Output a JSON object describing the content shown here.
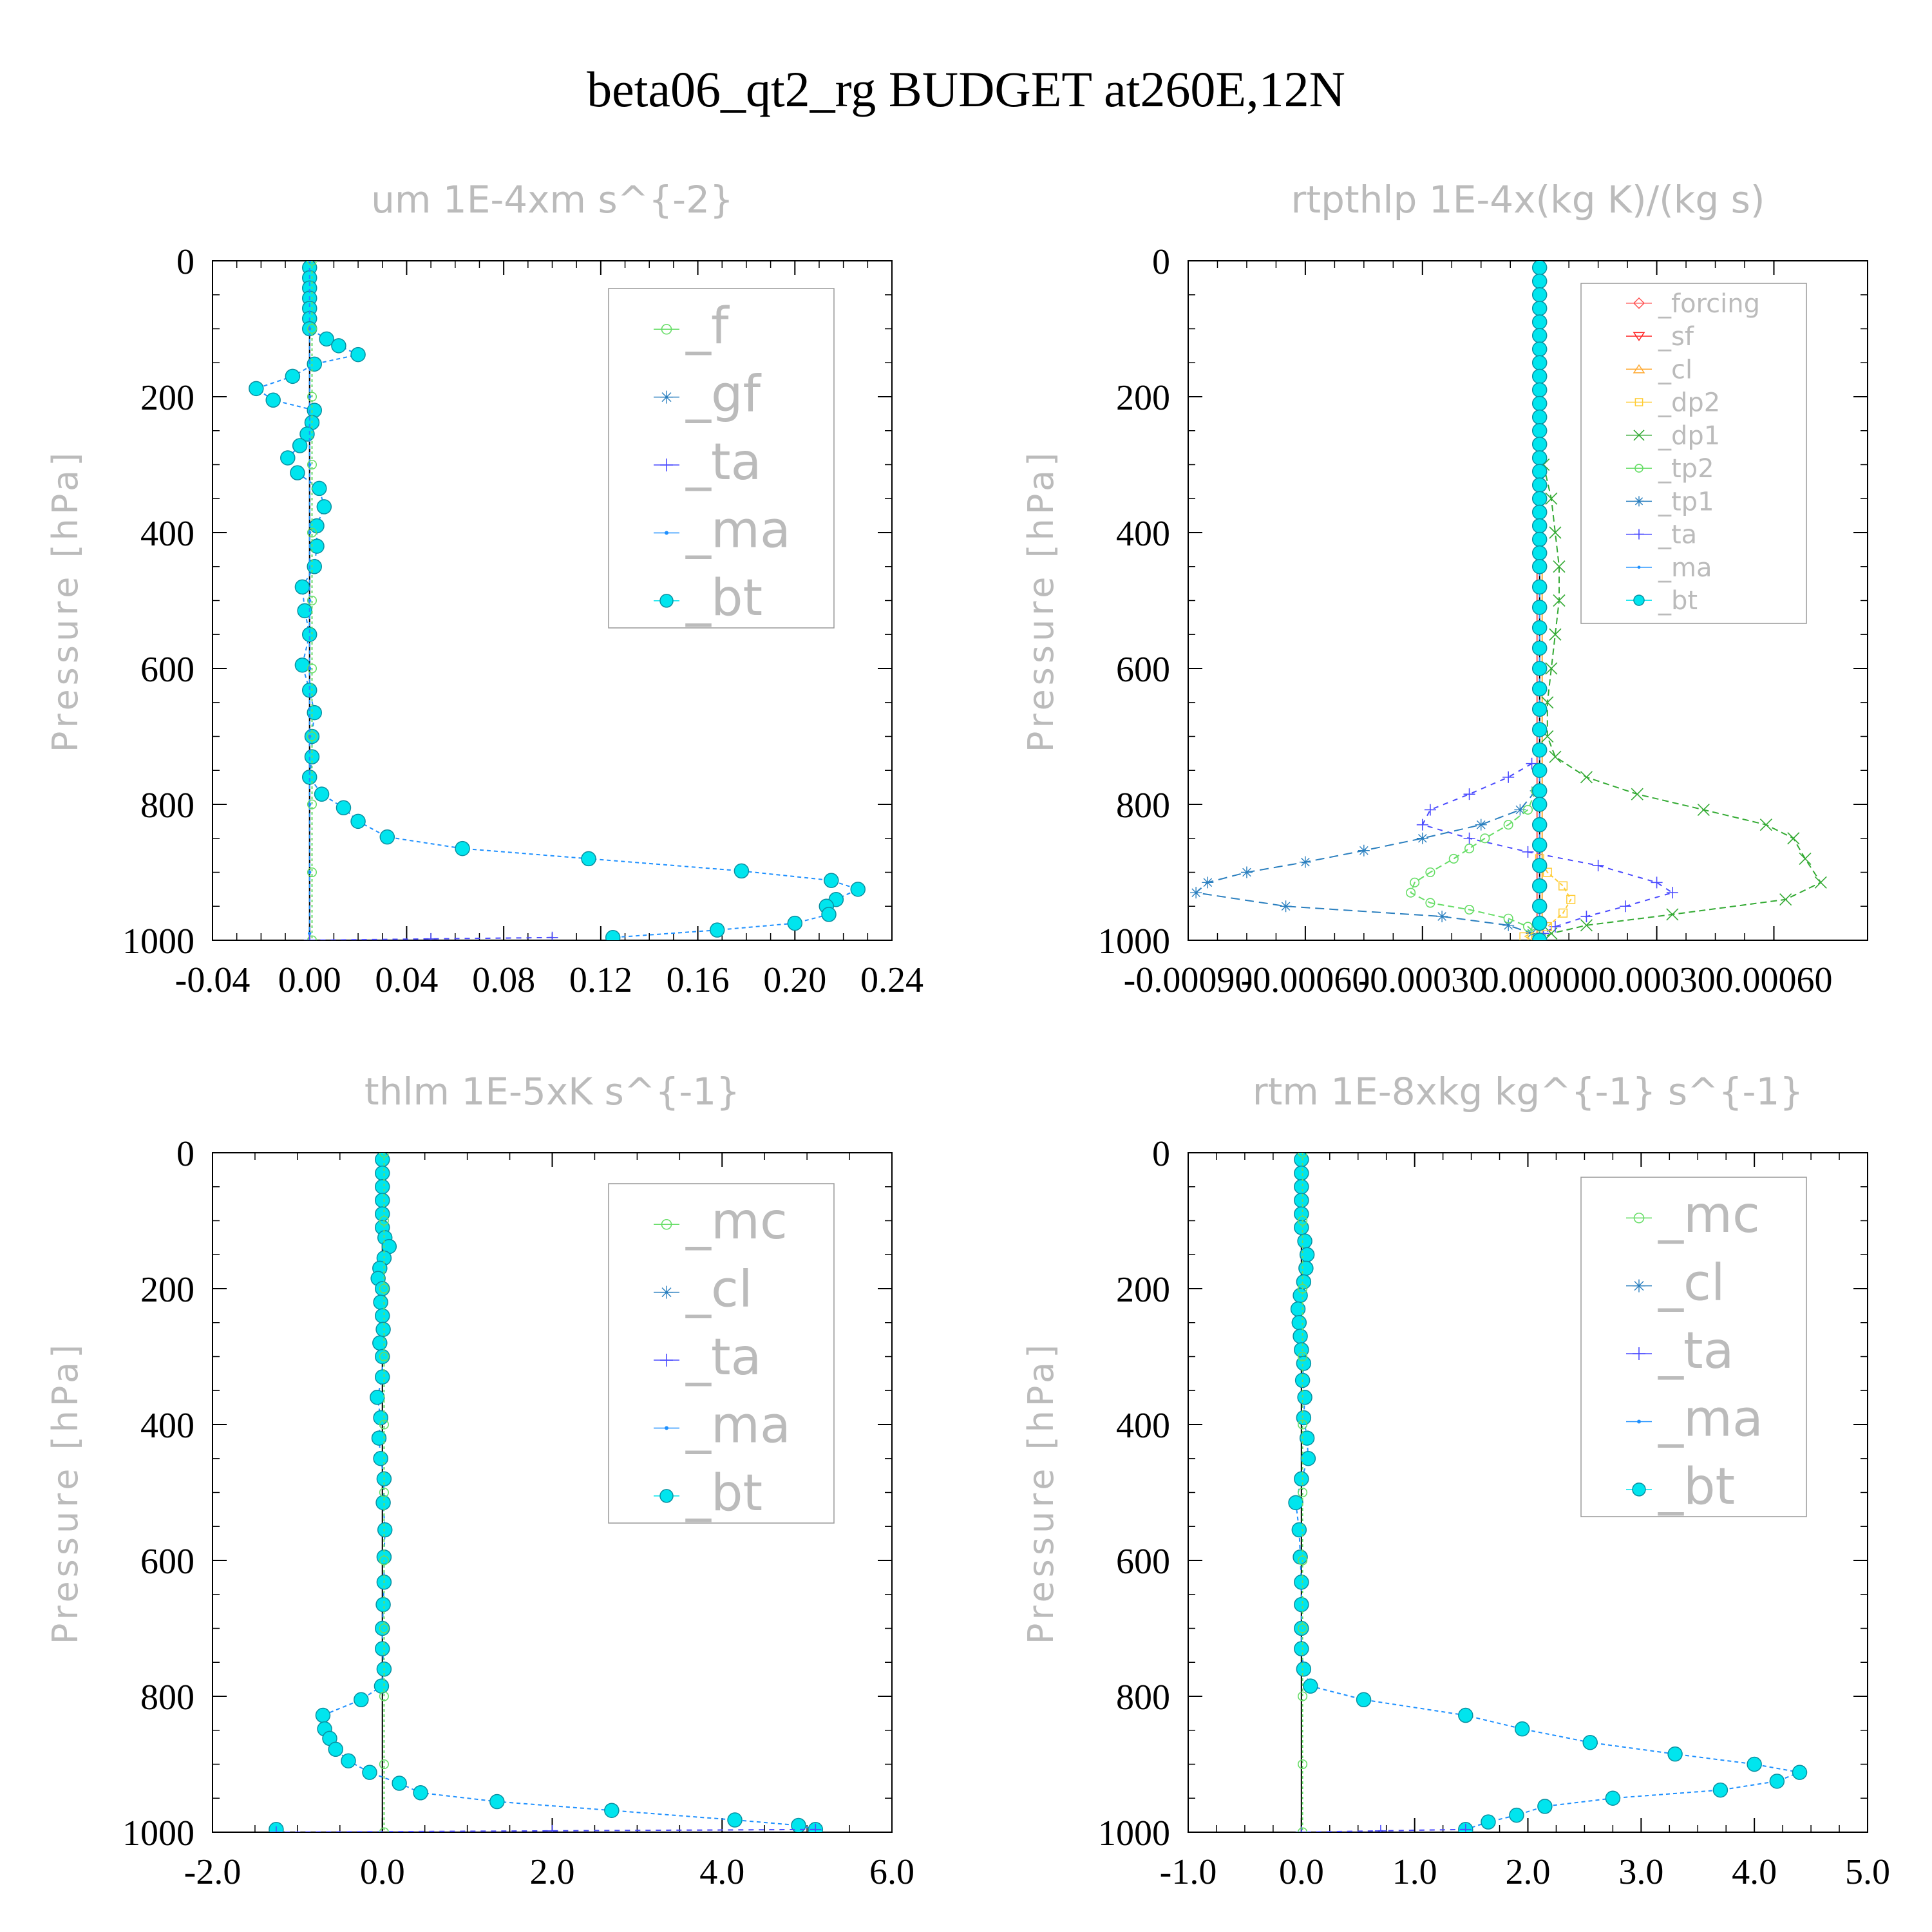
{
  "title": "beta06_qt2_rg  BUDGET at260E,12N",
  "colors": {
    "bt": "#00e5ee",
    "bt_edge": "#0a8fa0",
    "ma": "#1e90ff",
    "ta": "#4b4bff",
    "gf": "#2a7fbf",
    "f": "#66dd66",
    "mc": "#66dd66",
    "cl": "#2a7fbf",
    "forcing": "#ff5555",
    "sf": "#ff2222",
    "cl_orange": "#ffaa33",
    "dp2": "#ffcc33",
    "dp1": "#33aa33",
    "tp2": "#66dd66",
    "tp1": "#2a7fbf",
    "grey_text": "#bbbbbb"
  },
  "chart_data": [
    {
      "id": "um",
      "type": "line",
      "title": "um  1E-4xm s^{-2}",
      "ylabel": "Pressure [hPa]",
      "xlim": [
        -0.04,
        0.24
      ],
      "ylim": [
        1000,
        0
      ],
      "xticks": [
        "-0.04",
        "0.00",
        "0.04",
        "0.08",
        "0.12",
        "0.16",
        "0.20",
        "0.24"
      ],
      "yticks": [
        "0",
        "200",
        "400",
        "600",
        "800",
        "1000"
      ],
      "legend": [
        "_f",
        "_gf",
        "_ta",
        "_ma",
        "_bt"
      ],
      "series": [
        {
          "name": "_bt",
          "style": "bt",
          "y": [
            10,
            25,
            40,
            55,
            70,
            85,
            100,
            115,
            125,
            138,
            152,
            170,
            188,
            205,
            220,
            238,
            255,
            272,
            290,
            312,
            335,
            362,
            390,
            420,
            450,
            480,
            515,
            550,
            595,
            632,
            665,
            700,
            730,
            760,
            785,
            805,
            825,
            848,
            865,
            880,
            898,
            912,
            925,
            940,
            950,
            962,
            975,
            985,
            996
          ],
          "x": [
            0,
            0,
            0,
            0,
            0,
            0,
            0,
            0.007,
            0.012,
            0.02,
            0.002,
            -0.007,
            -0.022,
            -0.015,
            0.002,
            0.001,
            -0.001,
            -0.004,
            -0.009,
            -0.005,
            0.004,
            0.006,
            0.003,
            0.003,
            0.002,
            -0.003,
            -0.002,
            0,
            -0.003,
            0,
            0.002,
            0.001,
            0.001,
            0,
            0.005,
            0.014,
            0.02,
            0.032,
            0.063,
            0.115,
            0.178,
            0.215,
            0.226,
            0.217,
            0.213,
            0.214,
            0.2,
            0.168,
            0.125
          ]
        },
        {
          "name": "_ma",
          "style": "ma",
          "y": [
            0,
            100,
            200,
            300,
            400,
            500,
            600,
            700,
            800,
            900,
            990
          ],
          "x": [
            0,
            0,
            0,
            0,
            0,
            0,
            0,
            0,
            0,
            0,
            0
          ]
        },
        {
          "name": "_f",
          "style": "f",
          "y": [
            0,
            100,
            200,
            300,
            400,
            500,
            600,
            700,
            800,
            900,
            1000
          ],
          "x": [
            0.001,
            0.001,
            0.001,
            0.001,
            0.001,
            0.001,
            0.001,
            0.001,
            0.001,
            0.001,
            0.001
          ]
        },
        {
          "name": "_ta",
          "style": "ta",
          "y": [
            996,
            998,
            1000
          ],
          "x": [
            0.1,
            0.05,
            0
          ]
        }
      ]
    },
    {
      "id": "rtpthlp",
      "type": "line",
      "title": "rtpthlp  1E-4x(kg K)/(kg s)",
      "ylabel": "Pressure [hPa]",
      "xlim": [
        -0.0009,
        0.00084
      ],
      "ylim": [
        1000,
        0
      ],
      "xticks": [
        "-0.00090",
        "-0.00060",
        "-0.00030",
        "0.00000",
        "0.00030",
        "0.00060"
      ],
      "yticks": [
        "0",
        "200",
        "400",
        "600",
        "800",
        "1000"
      ],
      "legend": [
        "_forcing",
        "_sf",
        "_cl",
        "_dp2",
        "_dp1",
        "_tp2",
        "_tp1",
        "_ta",
        "_ma",
        "_bt"
      ],
      "series": [
        {
          "name": "_dp1",
          "style": "dp1",
          "y": [
            300,
            350,
            400,
            450,
            500,
            550,
            600,
            650,
            700,
            730,
            760,
            785,
            808,
            830,
            850,
            880,
            915,
            940,
            962,
            978,
            990,
            1000
          ],
          "x": [
            1e-05,
            3e-05,
            4e-05,
            5e-05,
            5e-05,
            4e-05,
            3e-05,
            2e-05,
            2e-05,
            4e-05,
            0.00012,
            0.00025,
            0.00042,
            0.00058,
            0.00065,
            0.00068,
            0.00072,
            0.00063,
            0.00034,
            0.00012,
            3e-05,
            0
          ]
        },
        {
          "name": "_ta",
          "style": "ta",
          "y": [
            740,
            760,
            785,
            808,
            830,
            850,
            870,
            890,
            915,
            930,
            950,
            965,
            980,
            990,
            1000
          ],
          "x": [
            -2e-05,
            -8e-05,
            -0.00018,
            -0.00028,
            -0.0003,
            -0.00018,
            -3e-05,
            0.00015,
            0.0003,
            0.00034,
            0.00022,
            0.00012,
            4e-05,
            1e-05,
            0
          ]
        },
        {
          "name": "_tp1",
          "style": "tp1",
          "y": [
            780,
            808,
            830,
            850,
            868,
            885,
            900,
            915,
            930,
            950,
            965,
            978,
            990,
            1000
          ],
          "x": [
            -1e-05,
            -5e-05,
            -0.00015,
            -0.0003,
            -0.00045,
            -0.0006,
            -0.00075,
            -0.00085,
            -0.00088,
            -0.00065,
            -0.00025,
            -8e-05,
            -2e-05,
            0
          ]
        },
        {
          "name": "_tp2",
          "style": "tp2",
          "y": [
            780,
            808,
            830,
            850,
            865,
            880,
            900,
            915,
            930,
            945,
            955,
            968,
            980,
            990,
            1000
          ],
          "x": [
            -1e-05,
            -3e-05,
            -8e-05,
            -0.00014,
            -0.00018,
            -0.00022,
            -0.00028,
            -0.00032,
            -0.00033,
            -0.00028,
            -0.00018,
            -8e-05,
            -3e-05,
            -1e-05,
            0
          ]
        },
        {
          "name": "_dp2",
          "style": "dp2",
          "y": [
            880,
            900,
            920,
            940,
            960,
            980,
            995,
            1000
          ],
          "x": [
            0,
            2e-05,
            6e-05,
            8e-05,
            6e-05,
            2e-05,
            -4e-05,
            -1e-05
          ]
        },
        {
          "name": "_bt",
          "style": "bt",
          "y": [
            10,
            30,
            50,
            70,
            90,
            110,
            130,
            150,
            170,
            190,
            210,
            230,
            250,
            270,
            290,
            310,
            330,
            350,
            370,
            390,
            410,
            430,
            450,
            480,
            510,
            540,
            570,
            600,
            630,
            660,
            690,
            720,
            750,
            780,
            800,
            830,
            860,
            890,
            920,
            950,
            975,
            1000
          ],
          "x": [
            0,
            0,
            0,
            0,
            0,
            0,
            0,
            0,
            0,
            0,
            0,
            0,
            0,
            0,
            0,
            0,
            0,
            0,
            0,
            0,
            0,
            0,
            0,
            0,
            0,
            0,
            0,
            0,
            0,
            0,
            0,
            0,
            0,
            0,
            0,
            0,
            0,
            0,
            0,
            0,
            0,
            0
          ]
        }
      ]
    },
    {
      "id": "thlm",
      "type": "line",
      "title": "thlm  1E-5xK s^{-1}",
      "ylabel": "Pressure [hPa]",
      "xlim": [
        -2.0,
        6.0
      ],
      "ylim": [
        1000,
        0
      ],
      "xticks": [
        "-2.0",
        "0.0",
        "2.0",
        "4.0",
        "6.0"
      ],
      "yticks": [
        "0",
        "200",
        "400",
        "600",
        "800",
        "1000"
      ],
      "legend": [
        "_mc",
        "_cl",
        "_ta",
        "_ma",
        "_bt"
      ],
      "series": [
        {
          "name": "_bt",
          "style": "bt",
          "y": [
            10,
            30,
            50,
            70,
            90,
            110,
            125,
            138,
            155,
            170,
            185,
            200,
            220,
            240,
            260,
            280,
            300,
            330,
            360,
            390,
            420,
            450,
            480,
            515,
            555,
            595,
            632,
            665,
            700,
            730,
            760,
            785,
            805,
            828,
            848,
            862,
            878,
            895,
            912,
            928,
            942,
            955,
            968,
            982,
            990,
            996
          ],
          "x": [
            0,
            0,
            0,
            0,
            0,
            0,
            0.03,
            0.08,
            0.02,
            -0.03,
            -0.05,
            0,
            -0.02,
            0,
            0.01,
            -0.03,
            0,
            0,
            -0.06,
            -0.02,
            -0.04,
            -0.02,
            0.02,
            0.01,
            0.03,
            0.02,
            0.02,
            0.01,
            0,
            0,
            0.02,
            -0.01,
            -0.25,
            -0.7,
            -0.68,
            -0.62,
            -0.55,
            -0.4,
            -0.15,
            0.2,
            0.45,
            1.35,
            2.7,
            4.15,
            4.9,
            5.1
          ]
        },
        {
          "name": "_bt_surface",
          "style": "bt",
          "y": [
            996
          ],
          "x": [
            -1.25
          ]
        },
        {
          "name": "_ta",
          "style": "ta",
          "y": [
            996,
            998,
            1000
          ],
          "x": [
            5.1,
            2.0,
            -1.25
          ]
        },
        {
          "name": "_mc",
          "style": "mc",
          "y": [
            0,
            100,
            200,
            300,
            400,
            500,
            600,
            700,
            800,
            900,
            1000
          ],
          "x": [
            0.02,
            0.02,
            0.02,
            0.02,
            0.02,
            0.02,
            0.02,
            0.02,
            0.02,
            0.02,
            0.02
          ]
        }
      ]
    },
    {
      "id": "rtm",
      "type": "line",
      "title": "rtm  1E-8xkg kg^{-1} s^{-1}",
      "ylabel": "Pressure [hPa]",
      "xlim": [
        -1.0,
        5.0
      ],
      "ylim": [
        1000,
        0
      ],
      "xticks": [
        "-1.0",
        "0.0",
        "1.0",
        "2.0",
        "3.0",
        "4.0",
        "5.0"
      ],
      "yticks": [
        "0",
        "200",
        "400",
        "600",
        "800",
        "1000"
      ],
      "legend": [
        "_mc",
        "_cl",
        "_ta",
        "_ma",
        "_bt"
      ],
      "series": [
        {
          "name": "_bt",
          "style": "bt",
          "y": [
            10,
            30,
            50,
            70,
            90,
            110,
            130,
            150,
            170,
            190,
            210,
            230,
            250,
            270,
            290,
            310,
            335,
            360,
            390,
            420,
            450,
            480,
            515,
            555,
            595,
            632,
            665,
            700,
            730,
            760,
            785,
            805,
            828,
            848,
            868,
            885,
            900,
            912,
            925,
            938,
            950,
            962,
            975,
            985,
            996
          ],
          "x": [
            0,
            0,
            0,
            0,
            0,
            0,
            0.03,
            0.05,
            0.04,
            0.02,
            -0.01,
            -0.03,
            -0.02,
            -0.01,
            0,
            0.02,
            0.01,
            0.03,
            0.02,
            0.05,
            0.06,
            0,
            -0.05,
            -0.02,
            -0.01,
            0,
            0,
            0,
            0,
            0.02,
            0.08,
            0.55,
            1.45,
            1.95,
            2.55,
            3.3,
            4.0,
            4.4,
            4.2,
            3.7,
            2.75,
            2.15,
            1.9,
            1.65,
            1.45
          ]
        },
        {
          "name": "_ta",
          "style": "ta",
          "y": [
            996,
            998,
            1000
          ],
          "x": [
            1.45,
            0.7,
            0
          ]
        },
        {
          "name": "_mc",
          "style": "mc",
          "y": [
            0,
            100,
            200,
            300,
            400,
            500,
            600,
            700,
            800,
            900,
            1000
          ],
          "x": [
            0.01,
            0.01,
            0.01,
            0.01,
            0.01,
            0.01,
            0.01,
            0.01,
            0.01,
            0.01,
            0.01
          ]
        }
      ]
    }
  ]
}
